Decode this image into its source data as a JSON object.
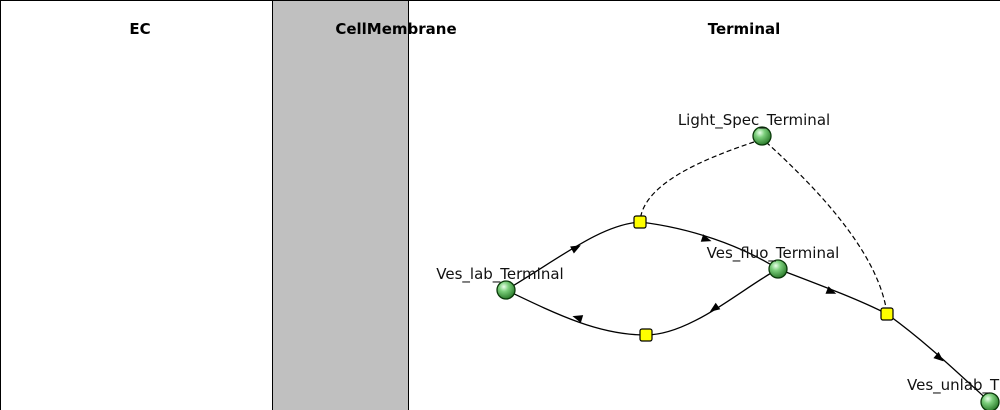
{
  "compartments": {
    "ec": {
      "label": "EC",
      "color": "#ffffff"
    },
    "cell_membrane": {
      "label": "CellMembrane",
      "color": "#c0c0c0"
    },
    "terminal": {
      "label": "Terminal",
      "color": "#ffffff"
    }
  },
  "species": {
    "light_spec": {
      "label": "Light_Spec_Terminal"
    },
    "ves_lab": {
      "label": "Ves_lab_Terminal"
    },
    "ves_fluo": {
      "label": "Ves_fluo_Terminal"
    },
    "ves_unlab": {
      "label": "Ves_unlab_T"
    }
  },
  "colors": {
    "species_fill": "#2e8b2e",
    "reaction_fill": "#ffff00",
    "membrane": "#c0c0c0"
  }
}
